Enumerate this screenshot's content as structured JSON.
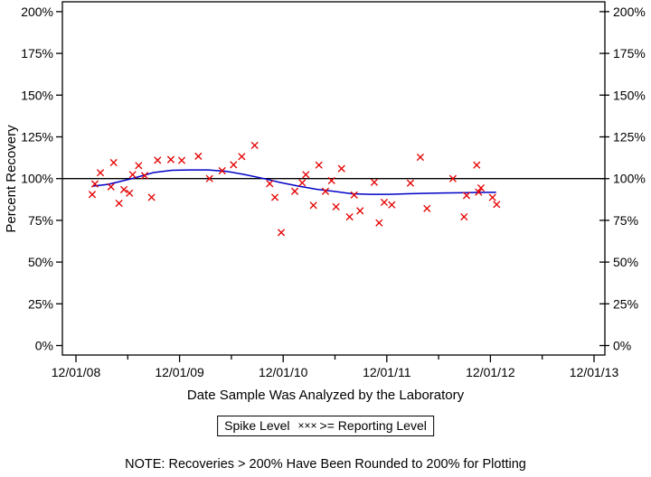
{
  "figure": {
    "y_axis_title": "Percent Recovery",
    "x_axis_title": "Date Sample Was Analyzed by the Laboratory",
    "note": "NOTE: Recoveries > 200% Have Been Rounded to 200% for Plotting",
    "legend": {
      "spike_label": "Spike Level",
      "marker_symbol": "×××",
      "reporting_label": ">= Reporting Level"
    }
  },
  "chart_data": {
    "type": "scatter",
    "title": "",
    "xlabel": "Date Sample Was Analyzed by the Laboratory",
    "ylabel": "Percent Recovery",
    "x_unit": "years after 12/01/08",
    "xlim": [
      -0.131,
      5.105
    ],
    "ylim": [
      -5.7,
      205.9
    ],
    "grid": false,
    "legend_position": "bottom-center",
    "x_tick_labels": [
      "12/01/08",
      "12/01/09",
      "12/01/10",
      "12/01/11",
      "12/01/12",
      "12/01/13"
    ],
    "x_tick_positions": [
      0,
      1,
      2,
      3,
      4,
      5
    ],
    "x_minor_tick_positions": [
      0.5,
      1.5,
      2.5,
      3.5,
      4.5
    ],
    "y_ticks_percent": [
      0,
      25,
      50,
      75,
      100,
      125,
      150,
      175,
      200
    ],
    "y_tick_suffix": "%",
    "reference_line": {
      "name": "Spike Level",
      "value_percent": 100,
      "color": "#000000"
    },
    "colors": {
      "marker": "#e60000",
      "trend": "#0000c8",
      "reference": "#000000"
    },
    "series": [
      {
        "name": ">= Reporting Level",
        "type": "scatter",
        "marker": "x",
        "color": "#e60000",
        "points": [
          [
            0.157,
            90.5
          ],
          [
            0.183,
            96.8
          ],
          [
            0.236,
            103.5
          ],
          [
            0.338,
            95.1
          ],
          [
            0.364,
            109.6
          ],
          [
            0.416,
            85.2
          ],
          [
            0.463,
            93.4
          ],
          [
            0.517,
            91.3
          ],
          [
            0.547,
            102.4
          ],
          [
            0.605,
            107.8
          ],
          [
            0.663,
            101.8
          ],
          [
            0.73,
            88.8
          ],
          [
            0.788,
            111.0
          ],
          [
            0.916,
            111.4
          ],
          [
            1.021,
            110.9
          ],
          [
            1.181,
            113.4
          ],
          [
            1.289,
            100.0
          ],
          [
            1.411,
            104.7
          ],
          [
            1.521,
            108.3
          ],
          [
            1.6,
            113.2
          ],
          [
            1.725,
            119.9
          ],
          [
            1.87,
            97.0
          ],
          [
            1.92,
            88.8
          ],
          [
            1.981,
            67.7
          ],
          [
            2.112,
            92.4
          ],
          [
            2.184,
            97.5
          ],
          [
            2.219,
            102.4
          ],
          [
            2.292,
            84.0
          ],
          [
            2.345,
            108.1
          ],
          [
            2.408,
            92.4
          ],
          [
            2.467,
            98.8
          ],
          [
            2.51,
            83.1
          ],
          [
            2.563,
            106.0
          ],
          [
            2.641,
            77.1
          ],
          [
            2.685,
            90.2
          ],
          [
            2.742,
            80.7
          ],
          [
            2.879,
            97.8
          ],
          [
            2.926,
            73.5
          ],
          [
            2.975,
            85.8
          ],
          [
            3.048,
            84.3
          ],
          [
            3.228,
            97.3
          ],
          [
            3.324,
            112.8
          ],
          [
            3.388,
            82.1
          ],
          [
            3.638,
            100.0
          ],
          [
            3.746,
            77.1
          ],
          [
            3.77,
            89.9
          ],
          [
            3.868,
            108.1
          ],
          [
            3.886,
            91.9
          ],
          [
            3.909,
            94.4
          ],
          [
            4.02,
            88.7
          ],
          [
            4.06,
            84.5
          ]
        ]
      },
      {
        "name": "trend-line",
        "type": "line",
        "color": "#0000c8",
        "points": [
          [
            0.166,
            95.5
          ],
          [
            0.314,
            96.6
          ],
          [
            0.541,
            100.0
          ],
          [
            0.75,
            103.6
          ],
          [
            0.925,
            105.0
          ],
          [
            1.099,
            105.2
          ],
          [
            1.274,
            105.2
          ],
          [
            1.449,
            104.4
          ],
          [
            1.623,
            102.5
          ],
          [
            1.815,
            100.0
          ],
          [
            1.972,
            97.7
          ],
          [
            2.147,
            95.5
          ],
          [
            2.321,
            93.6
          ],
          [
            2.496,
            92.3
          ],
          [
            2.67,
            90.9
          ],
          [
            2.845,
            90.6
          ],
          [
            3.019,
            90.6
          ],
          [
            3.194,
            90.9
          ],
          [
            3.368,
            91.2
          ],
          [
            3.543,
            91.4
          ],
          [
            3.717,
            91.5
          ],
          [
            3.892,
            91.7
          ],
          [
            4.055,
            91.8
          ]
        ]
      }
    ]
  }
}
